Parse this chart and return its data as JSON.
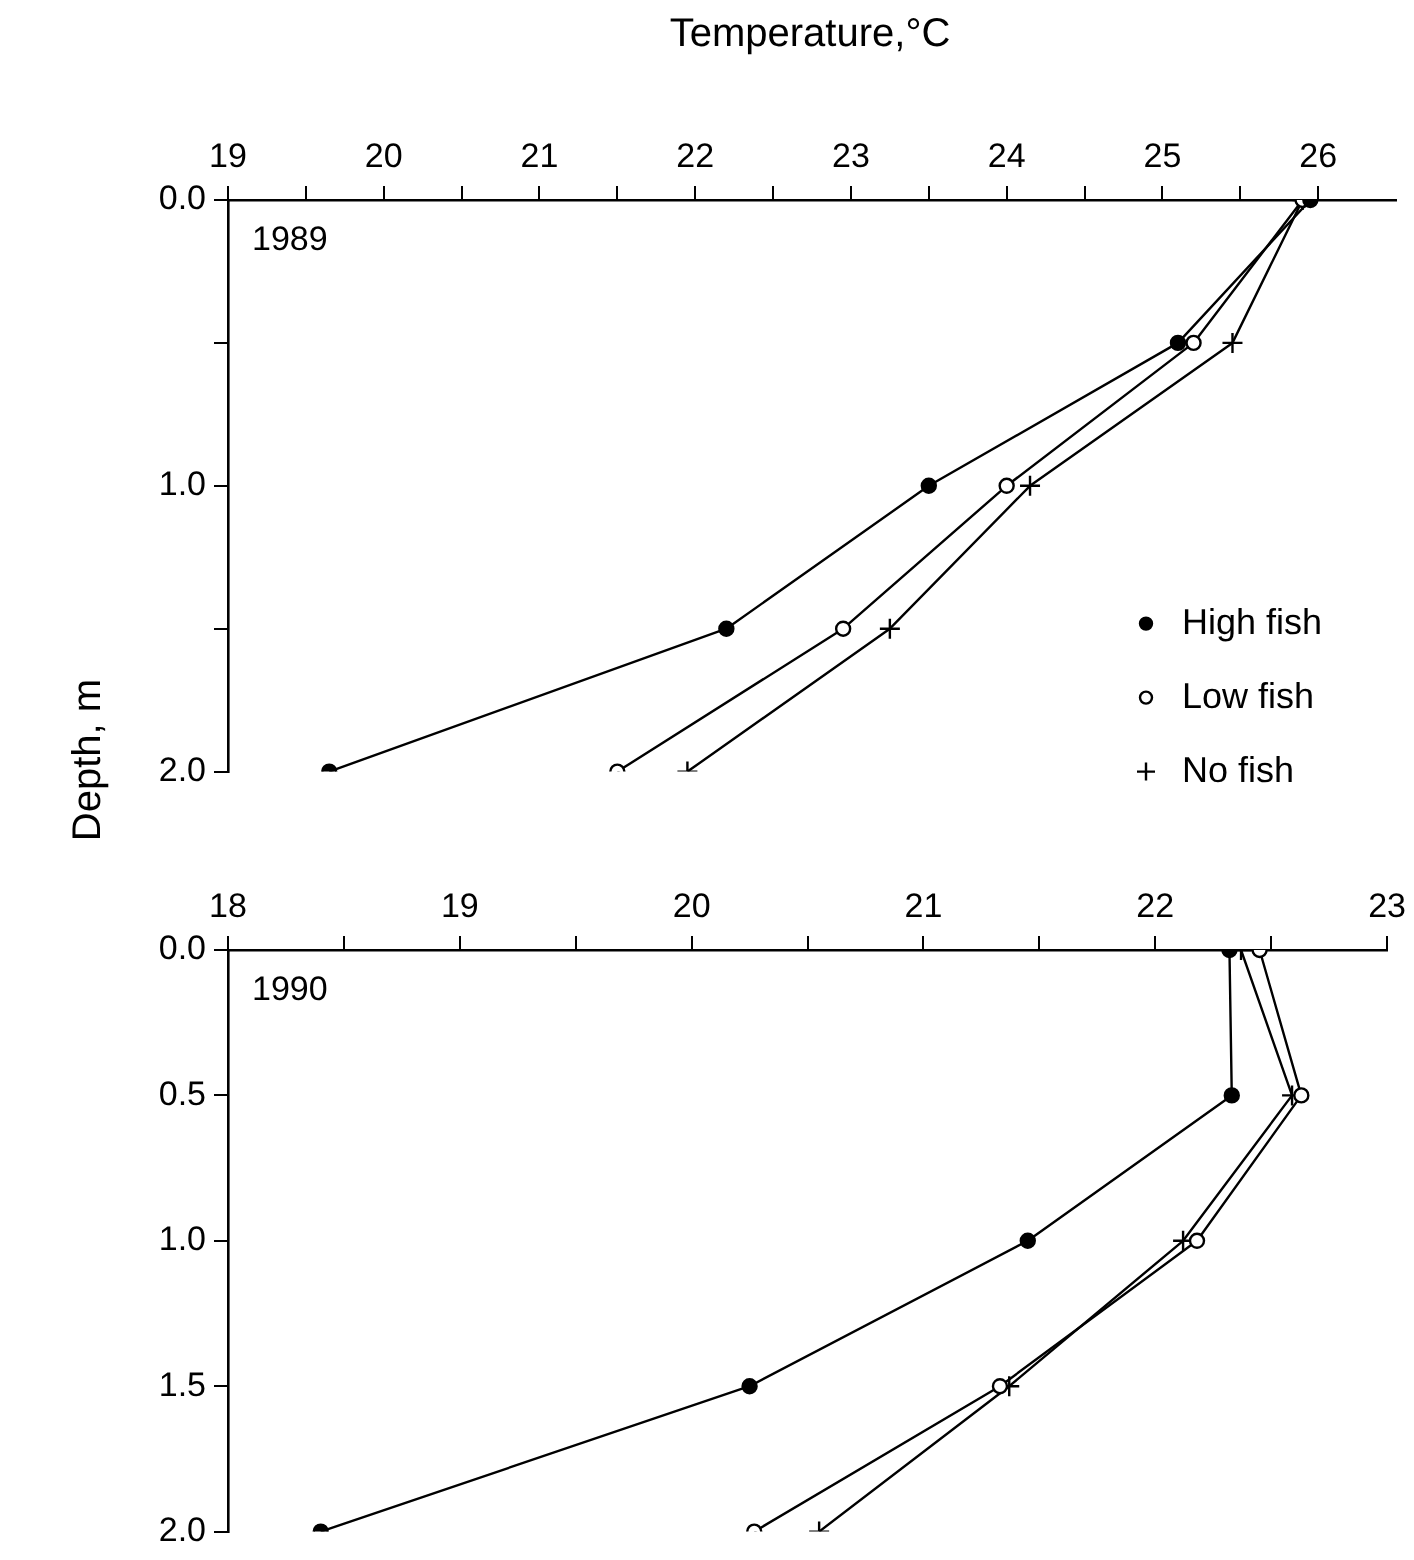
{
  "chart_data": [
    {
      "type": "line",
      "xlabel": "Temperature,°C",
      "ylabel": "Depth, m",
      "annotations": [
        "1989"
      ],
      "legend": "bottom right",
      "grid": false,
      "xlim": [
        19,
        26.5
      ],
      "xticks": [
        19,
        {
          "value": 19.5,
          "label": null
        },
        20,
        {
          "value": 20.5,
          "label": null
        },
        21,
        {
          "value": 21.5,
          "label": null
        },
        22,
        {
          "value": 22.5,
          "label": null
        },
        23,
        {
          "value": 23.5,
          "label": null
        },
        24,
        {
          "value": 24.5,
          "label": null
        },
        25,
        {
          "value": 25.5,
          "label": null
        },
        26
      ],
      "ylim": [
        2,
        0
      ],
      "yticks": [
        {
          "value": 0,
          "label": "0.0"
        },
        {
          "value": 0.5,
          "label": null
        },
        {
          "value": 1,
          "label": "1.0"
        },
        {
          "value": 1.5,
          "label": null
        },
        {
          "value": 2,
          "label": "2.0"
        }
      ],
      "series": [
        {
          "name": "High fish",
          "color": "#000000",
          "marker": "circle",
          "x": [
            25.95,
            25.1,
            23.5,
            22.2,
            19.65
          ],
          "values": [
            0,
            0.5,
            1,
            1.5,
            2
          ]
        },
        {
          "name": "Low fish",
          "color": "#000000",
          "marker": "open circle",
          "x": [
            25.9,
            25.2,
            24.0,
            22.95,
            21.5
          ],
          "values": [
            0,
            0.5,
            1,
            1.5,
            2
          ]
        },
        {
          "name": "No fish",
          "color": "#000000",
          "marker": "cross",
          "x": [
            25.9,
            25.45,
            24.15,
            23.25,
            21.95
          ],
          "values": [
            0,
            0.5,
            1,
            1.5,
            2
          ]
        }
      ]
    },
    {
      "type": "line",
      "annotations": [
        "1990"
      ],
      "grid": false,
      "xlim": [
        18,
        23
      ],
      "xticks": [
        18,
        {
          "value": 18.5,
          "label": null
        },
        19,
        {
          "value": 19.5,
          "label": null
        },
        20,
        {
          "value": 20.5,
          "label": null
        },
        21,
        {
          "value": 21.5,
          "label": null
        },
        22,
        {
          "value": 22.5,
          "label": null
        },
        23
      ],
      "ylim": [
        2,
        0
      ],
      "yticks": [
        {
          "value": 0,
          "label": "0.0"
        },
        {
          "value": 0.5,
          "label": "0.5"
        },
        {
          "value": 1,
          "label": "1.0"
        },
        {
          "value": 1.5,
          "label": "1.5"
        },
        {
          "value": 2,
          "label": "2.0"
        }
      ],
      "series": [
        {
          "color": "#000000",
          "marker": "circle",
          "x": [
            22.32,
            22.33,
            21.45,
            20.25,
            18.4
          ],
          "values": [
            0,
            0.5,
            1,
            1.5,
            2
          ]
        },
        {
          "color": "#000000",
          "marker": "open circle",
          "x": [
            22.45,
            22.63,
            22.18,
            21.33,
            20.27
          ],
          "values": [
            0,
            0.5,
            1,
            1.5,
            2
          ]
        },
        {
          "color": "#000000",
          "marker": "cross",
          "x": [
            22.37,
            22.59,
            22.12,
            21.37,
            20.55
          ],
          "values": [
            0,
            0.5,
            1,
            1.5,
            2
          ]
        }
      ]
    }
  ]
}
